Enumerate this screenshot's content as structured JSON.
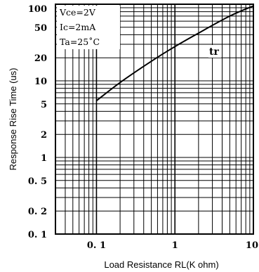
{
  "chart_data": {
    "type": "line",
    "title": "",
    "xlabel": "Load Resistance RL(K ohm)",
    "ylabel": "Response Rise Time (us)",
    "x_scale": "log",
    "y_scale": "log",
    "xlim": [
      0.03,
      10
    ],
    "ylim": [
      0.1,
      100
    ],
    "grid": true,
    "x_tick_labels": [
      {
        "value": 0.1,
        "label": "0. 1"
      },
      {
        "value": 1,
        "label": "1"
      },
      {
        "value": 10,
        "label": "10"
      }
    ],
    "y_tick_labels": [
      {
        "value": 100,
        "label": "100"
      },
      {
        "value": 50,
        "label": "50"
      },
      {
        "value": 20,
        "label": "20"
      },
      {
        "value": 10,
        "label": "10"
      },
      {
        "value": 5,
        "label": "5"
      },
      {
        "value": 2,
        "label": "2"
      },
      {
        "value": 1,
        "label": "1"
      },
      {
        "value": 0.5,
        "label": "0. 5"
      },
      {
        "value": 0.2,
        "label": "0. 2"
      },
      {
        "value": 0.1,
        "label": "0. 1"
      }
    ],
    "conditions": [
      "Vce=2V",
      "Ic=2mA",
      "Ta=25˚C"
    ],
    "series": [
      {
        "name": "tr",
        "x": [
          0.1,
          0.2,
          0.5,
          1,
          2,
          5,
          10
        ],
        "y": [
          5.5,
          9.5,
          18,
          28,
          42,
          70,
          95
        ]
      }
    ]
  }
}
